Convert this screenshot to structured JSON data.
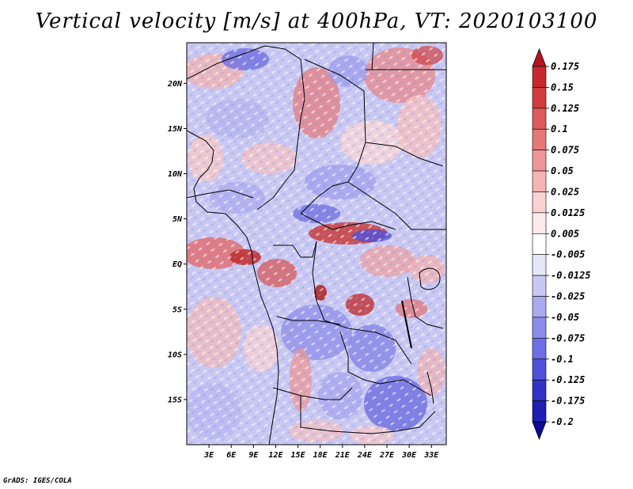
{
  "title": "Vertical velocity [m/s] at 400hPa, VT: 2020103100",
  "credit": "GrADS: IGES/COLA",
  "map": {
    "lon_range": [
      0,
      35
    ],
    "lat_range": [
      -20,
      24.5
    ],
    "lat_ticks": [
      {
        "value": 20,
        "label": "20N"
      },
      {
        "value": 15,
        "label": "15N"
      },
      {
        "value": 10,
        "label": "10N"
      },
      {
        "value": 5,
        "label": "5N"
      },
      {
        "value": 0,
        "label": "EQ"
      },
      {
        "value": -5,
        "label": "5S"
      },
      {
        "value": -10,
        "label": "10S"
      },
      {
        "value": -15,
        "label": "15S"
      }
    ],
    "lon_ticks": [
      {
        "value": 3,
        "label": "3E"
      },
      {
        "value": 6,
        "label": "6E"
      },
      {
        "value": 9,
        "label": "9E"
      },
      {
        "value": 12,
        "label": "12E"
      },
      {
        "value": 15,
        "label": "15E"
      },
      {
        "value": 18,
        "label": "18E"
      },
      {
        "value": 21,
        "label": "21E"
      },
      {
        "value": 24,
        "label": "24E"
      },
      {
        "value": 27,
        "label": "27E"
      },
      {
        "value": 30,
        "label": "30E"
      },
      {
        "value": 33,
        "label": "33E"
      }
    ]
  },
  "colorbar": {
    "levels": [
      "0.175",
      "0.15",
      "0.125",
      "0.1",
      "0.075",
      "0.05",
      "0.025",
      "0.0125",
      "0.005",
      "-0.005",
      "-0.0125",
      "-0.025",
      "-0.05",
      "-0.075",
      "-0.1",
      "-0.125",
      "-0.175",
      "-0.2"
    ],
    "colors": [
      "#b4141e",
      "#c8282d",
      "#d23c3c",
      "#dc5a5a",
      "#e67878",
      "#f09696",
      "#f5b4b4",
      "#fad2d2",
      "#fdeaea",
      "#ffffff",
      "#e6e6fa",
      "#c8c8f5",
      "#aaaaf0",
      "#8c8ceb",
      "#6e6ee6",
      "#5050dc",
      "#3232c8",
      "#1e1eb4",
      "#0a0a96"
    ]
  },
  "colors": {
    "pos_strong": "#c81e28",
    "pos_mid": "#eb7878",
    "pos_light": "#f6c8c8",
    "neg_light": "#d2d2f8",
    "neg_mid": "#9696ee",
    "neg_strong": "#4646d2",
    "border": "#000000"
  }
}
